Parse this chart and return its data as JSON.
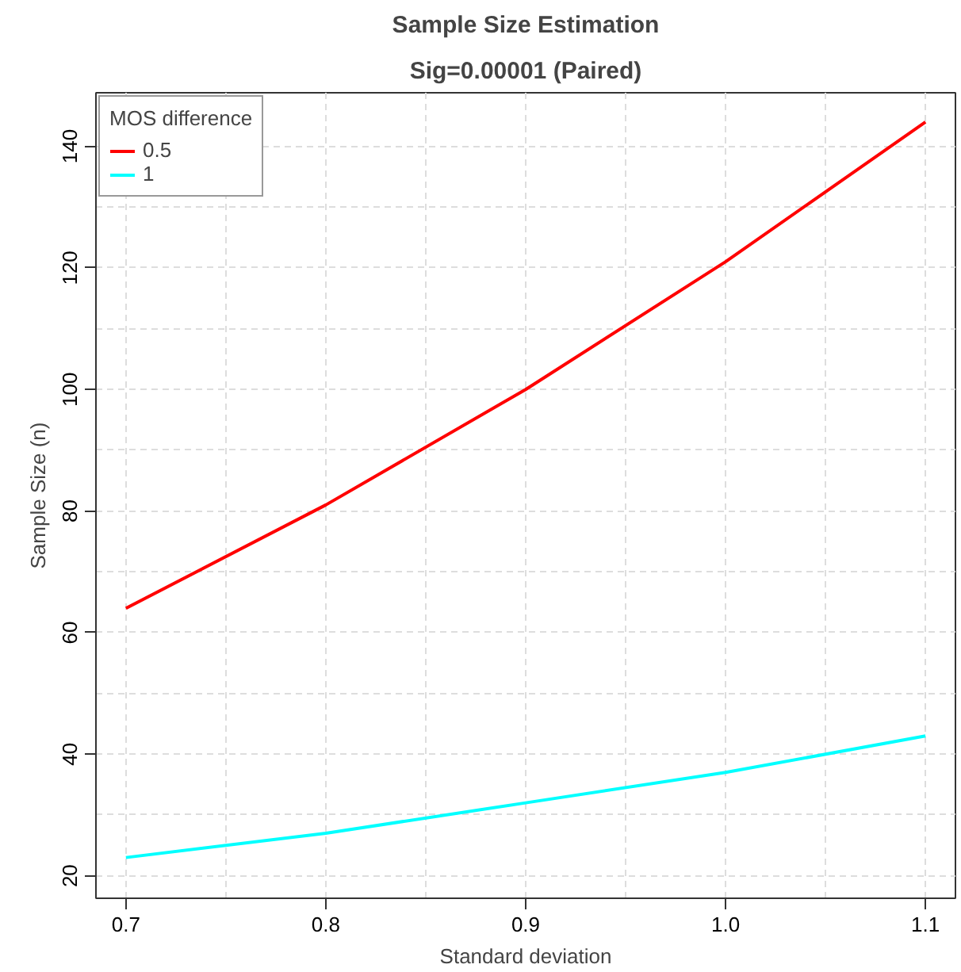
{
  "chart_data": {
    "type": "line",
    "title": "Sample Size Estimation",
    "subtitle": "Sig=0.00001 (Paired)",
    "xlabel": "Standard deviation",
    "ylabel": "Sample Size (n)",
    "legend_title": "MOS difference",
    "x": [
      0.7,
      0.8,
      0.9,
      1.0,
      1.1
    ],
    "series": [
      {
        "name": "0.5",
        "color": "#ff0000",
        "values": [
          64,
          81,
          100,
          121,
          144
        ]
      },
      {
        "name": "1",
        "color": "#00ffff",
        "values": [
          23,
          27,
          32,
          37,
          43
        ]
      }
    ],
    "xlim": [
      0.685,
      1.115
    ],
    "ylim": [
      16.3,
      148.8
    ],
    "xticks": [
      {
        "value": 0.7,
        "label": "0.7"
      },
      {
        "value": 0.8,
        "label": "0.8"
      },
      {
        "value": 0.9,
        "label": "0.9"
      },
      {
        "value": 1.0,
        "label": "1.0"
      },
      {
        "value": 1.1,
        "label": "1.1"
      }
    ],
    "yticks": [
      20,
      40,
      60,
      80,
      100,
      120,
      140
    ],
    "grid": true,
    "legend": "top left",
    "marker": "none",
    "line_style": "solid"
  }
}
